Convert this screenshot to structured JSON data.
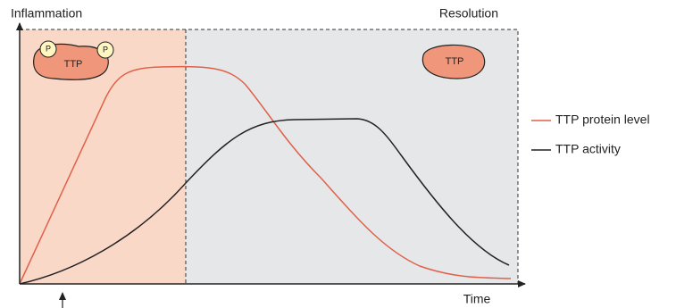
{
  "phases": {
    "left": "Inflammation",
    "right": "Resolution"
  },
  "icons": {
    "phosphorylated": {
      "label": "TTP",
      "sites": [
        "P",
        "P"
      ]
    },
    "unphosphorylated": {
      "label": "TTP"
    }
  },
  "legend": [
    "TTP protein level",
    "TTP activity"
  ],
  "axis": {
    "x_label": "Time"
  }
}
